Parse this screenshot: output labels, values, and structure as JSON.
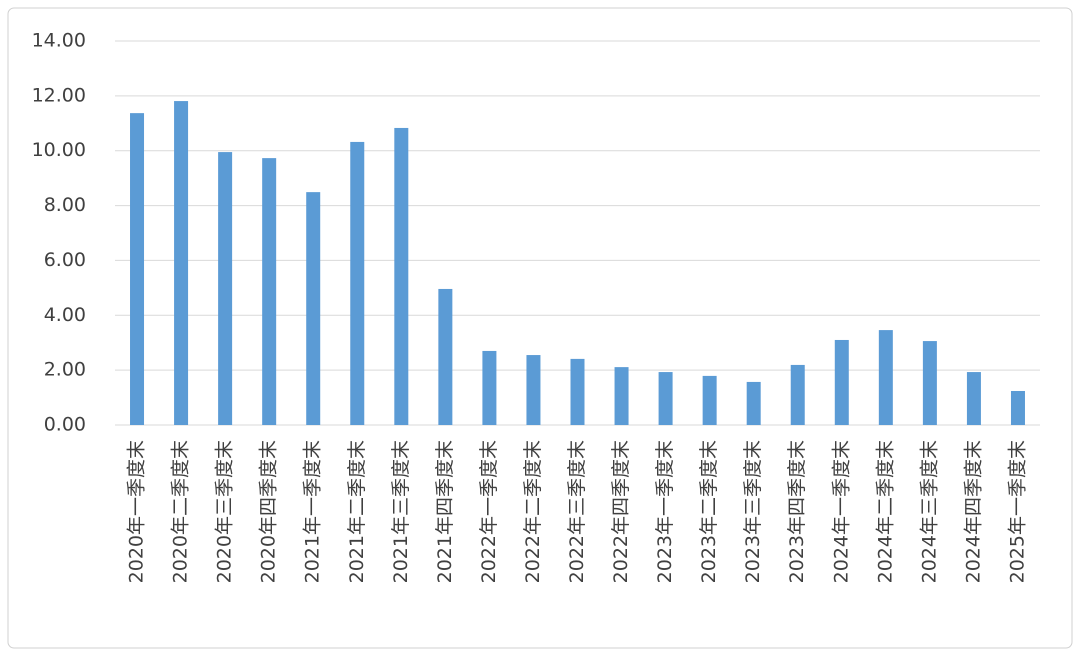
{
  "chart_data": {
    "type": "bar",
    "categories": [
      "2020年一季度末",
      "2020年二季度末",
      "2020年三季度末",
      "2020年四季度末",
      "2021年一季度末",
      "2021年二季度末",
      "2021年三季度末",
      "2021年四季度末",
      "2022年一季度末",
      "2022年二季度末",
      "2022年三季度末",
      "2022年四季度末",
      "2023年一季度末",
      "2023年二季度末",
      "2023年三季度末",
      "2023年四季度末",
      "2024年一季度末",
      "2024年二季度末",
      "2024年三季度末",
      "2024年四季度末",
      "2025年一季度末"
    ],
    "values": [
      11.37,
      11.81,
      9.95,
      9.73,
      8.49,
      10.32,
      10.83,
      4.96,
      2.7,
      2.55,
      2.41,
      2.11,
      1.93,
      1.79,
      1.57,
      2.19,
      3.1,
      3.46,
      3.06,
      1.93,
      1.24
    ],
    "color": "#5b9bd5",
    "ylim": [
      0,
      14
    ],
    "yticks": [
      {
        "value": 0,
        "label": "0.00"
      },
      {
        "value": 2,
        "label": "2.00"
      },
      {
        "value": 4,
        "label": "4.00"
      },
      {
        "value": 6,
        "label": "6.00"
      },
      {
        "value": 8,
        "label": "8.00"
      },
      {
        "value": 10,
        "label": "10.00"
      },
      {
        "value": 12,
        "label": "12.00"
      },
      {
        "value": 14,
        "label": "14.00"
      }
    ],
    "grid": true
  }
}
